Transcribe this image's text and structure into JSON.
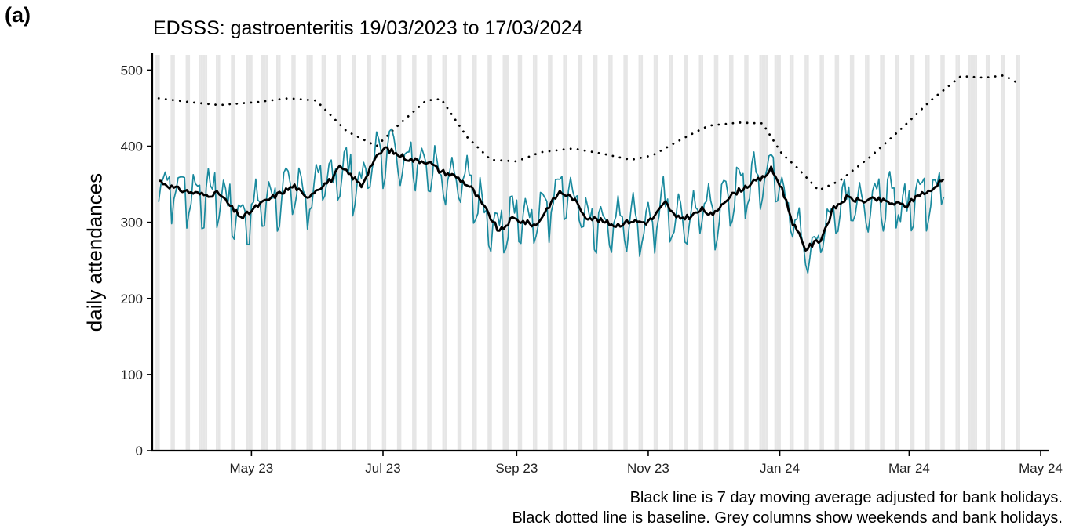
{
  "panel_label": "(a)",
  "captions": [
    "Black line is 7 day moving average adjusted for bank holidays.",
    "Black dotted line is baseline. Grey columns show weekends and bank holidays."
  ],
  "colors": {
    "daily_line": "#1a8a9e",
    "moving_average": "#000000",
    "baseline": "#000000",
    "weekend_columns": "#e6e6e6"
  },
  "chart_data": {
    "type": "line",
    "title": "EDSSS: gastroenteritis 19/03/2023 to 17/03/2024",
    "xlabel": "",
    "ylabel": "daily attendances",
    "start_date": "2023-03-19",
    "xlim": [
      "2023-03-16",
      "2024-05-05"
    ],
    "ylim": [
      0,
      520
    ],
    "x_ticks": [
      {
        "date": "2023-05-01",
        "label": "May 23"
      },
      {
        "date": "2023-07-01",
        "label": "Jul 23"
      },
      {
        "date": "2023-09-01",
        "label": "Sep 23"
      },
      {
        "date": "2023-11-01",
        "label": "Nov 23"
      },
      {
        "date": "2024-01-01",
        "label": "Jan 24"
      },
      {
        "date": "2024-03-01",
        "label": "Mar 24"
      },
      {
        "date": "2024-05-01",
        "label": "May 24"
      }
    ],
    "y_ticks": [
      0,
      100,
      200,
      300,
      400,
      500
    ],
    "grid": false,
    "shaded_columns": "weekends and bank holidays, 2023-03-18 to 2024-04-21",
    "bank_holidays": [
      "2023-04-07",
      "2023-04-10",
      "2023-05-01",
      "2023-05-08",
      "2023-05-29",
      "2023-08-28",
      "2023-12-25",
      "2023-12-26",
      "2024-01-01",
      "2024-03-29",
      "2024-04-01"
    ],
    "series": [
      {
        "name": "daily attendances",
        "style": "thin-teal",
        "description": "daily values from 2023-03-19 to 2024-03-17, oscillating weekly about the moving average"
      },
      {
        "name": "7 day moving average",
        "style": "solid-black",
        "points": [
          [
            "2023-03-19",
            355
          ],
          [
            "2023-03-26",
            345
          ],
          [
            "2023-04-02",
            340
          ],
          [
            "2023-04-09",
            336
          ],
          [
            "2023-04-16",
            338
          ],
          [
            "2023-04-23",
            315
          ],
          [
            "2023-04-27",
            306
          ],
          [
            "2023-05-04",
            322
          ],
          [
            "2023-05-14",
            338
          ],
          [
            "2023-05-21",
            348
          ],
          [
            "2023-05-26",
            332
          ],
          [
            "2023-06-01",
            345
          ],
          [
            "2023-06-07",
            356
          ],
          [
            "2023-06-11",
            372
          ],
          [
            "2023-06-16",
            362
          ],
          [
            "2023-06-21",
            348
          ],
          [
            "2023-06-26",
            378
          ],
          [
            "2023-07-02",
            398
          ],
          [
            "2023-07-07",
            390
          ],
          [
            "2023-07-14",
            382
          ],
          [
            "2023-07-22",
            380
          ],
          [
            "2023-07-27",
            368
          ],
          [
            "2023-08-04",
            360
          ],
          [
            "2023-08-11",
            345
          ],
          [
            "2023-08-18",
            315
          ],
          [
            "2023-08-24",
            287
          ],
          [
            "2023-08-30",
            305
          ],
          [
            "2023-09-05",
            300
          ],
          [
            "2023-09-10",
            296
          ],
          [
            "2023-09-16",
            322
          ],
          [
            "2023-09-21",
            340
          ],
          [
            "2023-09-27",
            332
          ],
          [
            "2023-10-03",
            308
          ],
          [
            "2023-10-10",
            302
          ],
          [
            "2023-10-17",
            296
          ],
          [
            "2023-10-24",
            302
          ],
          [
            "2023-10-31",
            300
          ],
          [
            "2023-11-03",
            305
          ],
          [
            "2023-11-09",
            326
          ],
          [
            "2023-11-14",
            305
          ],
          [
            "2023-11-21",
            308
          ],
          [
            "2023-11-26",
            317
          ],
          [
            "2023-12-01",
            308
          ],
          [
            "2023-12-06",
            328
          ],
          [
            "2023-12-12",
            340
          ],
          [
            "2023-12-18",
            350
          ],
          [
            "2023-12-24",
            358
          ],
          [
            "2023-12-28",
            370
          ],
          [
            "2024-01-02",
            345
          ],
          [
            "2024-01-07",
            300
          ],
          [
            "2024-01-13",
            265
          ],
          [
            "2024-01-20",
            278
          ],
          [
            "2024-01-26",
            318
          ],
          [
            "2024-02-01",
            332
          ],
          [
            "2024-02-08",
            328
          ],
          [
            "2024-02-15",
            330
          ],
          [
            "2024-02-22",
            325
          ],
          [
            "2024-02-29",
            322
          ],
          [
            "2024-03-06",
            338
          ],
          [
            "2024-03-11",
            340
          ],
          [
            "2024-03-17",
            360
          ]
        ]
      },
      {
        "name": "baseline",
        "style": "dotted-black",
        "points": [
          [
            "2023-03-19",
            463
          ],
          [
            "2023-04-02",
            458
          ],
          [
            "2023-04-16",
            454
          ],
          [
            "2023-05-04",
            458
          ],
          [
            "2023-05-18",
            463
          ],
          [
            "2023-05-31",
            460
          ],
          [
            "2023-06-14",
            420
          ],
          [
            "2023-06-28",
            400
          ],
          [
            "2023-07-09",
            430
          ],
          [
            "2023-07-21",
            460
          ],
          [
            "2023-07-28",
            462
          ],
          [
            "2023-08-09",
            412
          ],
          [
            "2023-08-20",
            382
          ],
          [
            "2023-09-01",
            380
          ],
          [
            "2023-09-12",
            392
          ],
          [
            "2023-09-27",
            397
          ],
          [
            "2023-10-11",
            390
          ],
          [
            "2023-10-24",
            382
          ],
          [
            "2023-11-03",
            388
          ],
          [
            "2023-11-17",
            410
          ],
          [
            "2023-11-29",
            427
          ],
          [
            "2023-12-13",
            431
          ],
          [
            "2023-12-24",
            430
          ],
          [
            "2024-01-02",
            390
          ],
          [
            "2024-01-09",
            372
          ],
          [
            "2024-01-19",
            342
          ],
          [
            "2024-01-29",
            355
          ],
          [
            "2024-02-12",
            386
          ],
          [
            "2024-02-26",
            422
          ],
          [
            "2024-03-11",
            460
          ],
          [
            "2024-03-25",
            492
          ],
          [
            "2024-04-05",
            490
          ],
          [
            "2024-04-14",
            493
          ],
          [
            "2024-04-21",
            482
          ]
        ]
      }
    ]
  }
}
